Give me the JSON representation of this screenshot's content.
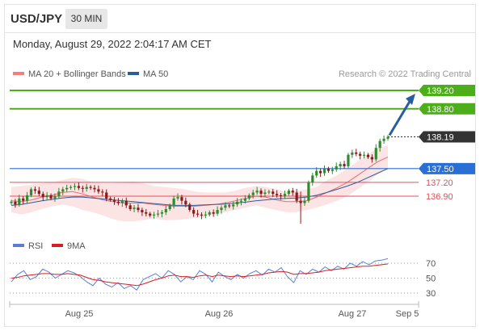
{
  "header": {
    "symbol": "USD/JPY",
    "interval": "30 MIN",
    "datetime": "Monday, August 29, 2022 2:04:17 AM CET"
  },
  "legend": {
    "items": [
      {
        "label": "MA 20 + Bollinger Bands",
        "color": "#f08080"
      },
      {
        "label": "MA 50",
        "color": "#2a5d9f"
      }
    ],
    "credit": "Research © 2022 Trading Central"
  },
  "colors": {
    "resistance": "#4caf1a",
    "support": "#2a6fd6",
    "pivot": "#333333",
    "target_red": "#e0505a",
    "arrow": "#2a5d9f",
    "up_candle": "#2e8b2e",
    "down_candle": "#8b1a1a",
    "band_fill": "#fbd9db",
    "rsi_line": "#5b7fd9",
    "rsi_ma": "#d42020"
  },
  "chart_data": [
    {
      "type": "candlestick",
      "title": "USD/JPY",
      "x_ticks": [
        "Aug 25",
        "Aug 26",
        "Aug 27",
        "Sep 5"
      ],
      "ylim": [
        136.35,
        139.35
      ],
      "levels": [
        {
          "value": 139.2,
          "label": "139.20",
          "kind": "resistance"
        },
        {
          "value": 138.8,
          "label": "138.80",
          "kind": "resistance"
        },
        {
          "value": 138.19,
          "label": "138.19",
          "kind": "pivot"
        },
        {
          "value": 137.5,
          "label": "137.50",
          "kind": "support"
        },
        {
          "value": 137.2,
          "label": "137.20",
          "kind": "target"
        },
        {
          "value": 136.9,
          "label": "136.90",
          "kind": "target"
        }
      ],
      "arrow": {
        "from": 138.19,
        "to": 139.2,
        "direction": "up"
      },
      "closes": [
        136.78,
        136.72,
        136.85,
        136.8,
        136.92,
        137.05,
        137.02,
        136.95,
        136.88,
        136.92,
        136.85,
        136.9,
        137.0,
        137.05,
        137.08,
        137.1,
        137.12,
        137.08,
        137.06,
        137.1,
        137.08,
        137.05,
        137.0,
        136.98,
        136.85,
        136.82,
        136.78,
        136.75,
        136.8,
        136.7,
        136.62,
        136.65,
        136.6,
        136.55,
        136.52,
        136.48,
        136.5,
        136.52,
        136.55,
        136.62,
        136.7,
        136.85,
        136.88,
        136.8,
        136.72,
        136.6,
        136.52,
        136.5,
        136.48,
        136.5,
        136.55,
        136.52,
        136.6,
        136.65,
        136.7,
        136.68,
        136.72,
        136.78,
        136.8,
        136.85,
        136.92,
        136.98,
        137.02,
        136.95,
        136.98,
        137.0,
        136.95,
        136.92,
        136.9,
        136.95,
        137.02,
        136.98,
        136.8,
        136.75,
        136.8,
        137.2,
        137.35,
        137.45,
        137.4,
        137.5,
        137.45,
        137.48,
        137.55,
        137.6,
        137.55,
        137.8,
        137.85,
        137.82,
        137.78,
        137.8,
        137.75,
        137.7,
        137.95,
        138.1,
        138.15,
        138.19
      ],
      "bands": {
        "upper": [
          137.1,
          137.12,
          137.15,
          137.18,
          137.2,
          137.25,
          137.3,
          137.28,
          137.2,
          137.18,
          137.18,
          137.2,
          137.22,
          137.18,
          137.12,
          137.1,
          137.08,
          137.05,
          137.0,
          136.98,
          136.98,
          136.98,
          137.02,
          137.08,
          137.12,
          137.1,
          137.05,
          137.0,
          137.02,
          137.05,
          137.1,
          137.25,
          137.35,
          137.5,
          137.65,
          137.8,
          137.95,
          138.0
        ],
        "lower": [
          136.55,
          136.5,
          136.55,
          136.62,
          136.68,
          136.72,
          136.68,
          136.6,
          136.55,
          136.48,
          136.4,
          136.35,
          136.35,
          136.38,
          136.42,
          136.38,
          136.38,
          136.4,
          136.42,
          136.45,
          136.5,
          136.55,
          136.6,
          136.65,
          136.7,
          136.65,
          136.6,
          136.55,
          136.55,
          136.6,
          136.65,
          136.72,
          136.8,
          136.9,
          137.05,
          137.2,
          137.38,
          137.5
        ]
      },
      "ma20": [
        136.8,
        136.78,
        136.82,
        136.88,
        136.92,
        136.98,
        137.0,
        136.95,
        136.88,
        136.82,
        136.78,
        136.75,
        136.75,
        136.75,
        136.72,
        136.7,
        136.68,
        136.68,
        136.68,
        136.7,
        136.72,
        136.75,
        136.8,
        136.85,
        136.9,
        136.88,
        136.82,
        136.78,
        136.78,
        136.8,
        136.88,
        136.98,
        137.08,
        137.2,
        137.35,
        137.5,
        137.65,
        137.75
      ],
      "ma50": [
        136.7,
        136.72,
        136.76,
        136.8,
        136.83,
        136.86,
        136.88,
        136.88,
        136.86,
        136.84,
        136.82,
        136.8,
        136.78,
        136.76,
        136.74,
        136.72,
        136.7,
        136.7,
        136.7,
        136.71,
        136.72,
        136.73,
        136.75,
        136.77,
        136.8,
        136.82,
        136.84,
        136.85,
        136.86,
        136.88,
        136.92,
        136.98,
        137.05,
        137.12,
        137.2,
        137.3,
        137.4,
        137.5
      ]
    },
    {
      "type": "line",
      "title": "RSI",
      "series": [
        {
          "name": "RSI",
          "values": [
            45,
            55,
            60,
            48,
            52,
            62,
            58,
            50,
            55,
            60,
            57,
            52,
            45,
            40,
            50,
            42,
            38,
            44,
            36,
            40,
            34,
            48,
            52,
            56,
            50,
            60,
            55,
            45,
            52,
            48,
            60,
            55,
            45,
            58,
            52,
            48,
            55,
            50,
            56,
            60,
            54,
            62,
            58,
            64,
            52,
            44,
            60,
            55,
            62,
            58,
            65,
            60,
            66,
            62,
            70,
            66,
            72,
            68,
            73,
            74,
            76
          ]
        },
        {
          "name": "9MA",
          "values": [
            50,
            51,
            53,
            54,
            55,
            56,
            56,
            55,
            55,
            56,
            55,
            54,
            51,
            48,
            47,
            45,
            44,
            43,
            42,
            41,
            40,
            42,
            45,
            48,
            50,
            53,
            54,
            52,
            52,
            51,
            53,
            54,
            52,
            54,
            53,
            52,
            53,
            52,
            53,
            54,
            55,
            57,
            58,
            59,
            58,
            55,
            56,
            56,
            57,
            58,
            60,
            61,
            62,
            63,
            64,
            65,
            66,
            66,
            67,
            68,
            69
          ]
        }
      ],
      "y_ticks": [
        "70",
        "50",
        "30"
      ],
      "ylim": [
        20,
        80
      ]
    }
  ]
}
